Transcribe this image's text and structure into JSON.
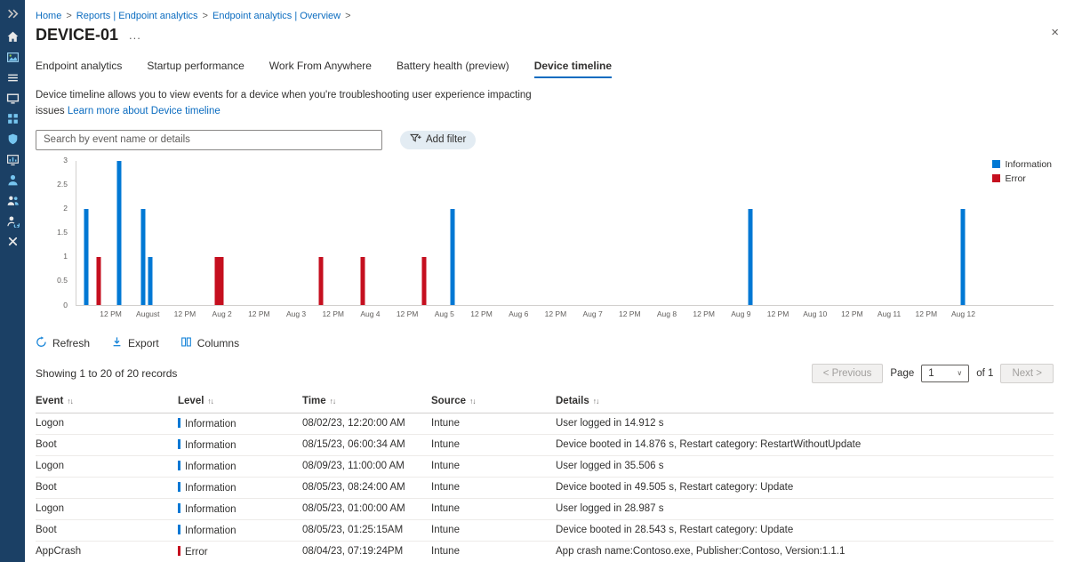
{
  "sidebar": {
    "items": [
      {
        "icon": "chevron-double-right-icon"
      },
      {
        "icon": "home-icon"
      },
      {
        "icon": "dashboard-icon"
      },
      {
        "icon": "all-services-icon"
      },
      {
        "icon": "devices-icon"
      },
      {
        "icon": "apps-icon"
      },
      {
        "icon": "endpoint-security-icon"
      },
      {
        "icon": "reports-icon"
      },
      {
        "icon": "users-icon"
      },
      {
        "icon": "groups-icon"
      },
      {
        "icon": "tenant-admin-icon"
      },
      {
        "icon": "troubleshooting-icon"
      }
    ]
  },
  "breadcrumb": {
    "separator": ">",
    "items": [
      "Home",
      "Reports | Endpoint analytics",
      "Endpoint analytics | Overview"
    ]
  },
  "header": {
    "title": "DEVICE-01",
    "more_label": "...",
    "close_label": "×"
  },
  "tabs": [
    {
      "label": "Endpoint analytics",
      "active": false
    },
    {
      "label": "Startup performance",
      "active": false
    },
    {
      "label": "Work From Anywhere",
      "active": false
    },
    {
      "label": "Battery health (preview)",
      "active": false
    },
    {
      "label": "Device timeline",
      "active": true
    }
  ],
  "description": {
    "text": "Device timeline allows you to view events for a device when you're troubleshooting user experience impacting issues",
    "link_text": "Learn more about Device timeline"
  },
  "filters": {
    "search_placeholder": "Search by event name or details",
    "add_filter_label": "Add filter"
  },
  "chart_data": {
    "type": "bar",
    "ylim": [
      0,
      3
    ],
    "yticks": [
      0,
      0.5,
      1,
      1.5,
      2,
      2.5,
      3
    ],
    "x_tick_labels": [
      "12 PM",
      "August",
      "12 PM",
      "Aug 2",
      "12 PM",
      "Aug 3",
      "12 PM",
      "Aug 4",
      "12 PM",
      "Aug 5",
      "12 PM",
      "Aug 6",
      "12 PM",
      "Aug 7",
      "12 PM",
      "Aug 8",
      "12 PM",
      "Aug 9",
      "12 PM",
      "Aug 10",
      "12 PM",
      "Aug 11",
      "12 PM",
      "Aug 12"
    ],
    "x_tick_start": 0.036,
    "x_tick_step": 0.0379,
    "grid": false,
    "legend_position": "top-right",
    "series": [
      {
        "name": "Information",
        "color": "#0078d4"
      },
      {
        "name": "Error",
        "color": "#c50f1f"
      }
    ],
    "bars": [
      {
        "pos": 0.01,
        "value": 2,
        "series": "Information"
      },
      {
        "pos": 0.023,
        "value": 1,
        "series": "Error"
      },
      {
        "pos": 0.044,
        "value": 3,
        "series": "Information"
      },
      {
        "pos": 0.068,
        "value": 2,
        "series": "Information"
      },
      {
        "pos": 0.0755,
        "value": 1,
        "series": "Information"
      },
      {
        "pos": 0.1435,
        "value": 1,
        "series": "Error"
      },
      {
        "pos": 0.148,
        "value": 1,
        "series": "Error"
      },
      {
        "pos": 0.25,
        "value": 1,
        "series": "Error"
      },
      {
        "pos": 0.293,
        "value": 1,
        "series": "Error"
      },
      {
        "pos": 0.356,
        "value": 1,
        "series": "Error"
      },
      {
        "pos": 0.385,
        "value": 2,
        "series": "Information"
      },
      {
        "pos": 0.69,
        "value": 2,
        "series": "Information"
      },
      {
        "pos": 0.907,
        "value": 2,
        "series": "Information"
      }
    ]
  },
  "toolbar": {
    "refresh_label": "Refresh",
    "export_label": "Export",
    "columns_label": "Columns"
  },
  "records": {
    "summary": "Showing 1 to 20 of 20 records",
    "pagination": {
      "previous_label": "< Previous",
      "page_label": "Page",
      "page_value": "1",
      "of_label": "of 1",
      "next_label": "Next >",
      "dropdown_icon": "∨"
    }
  },
  "table": {
    "columns": [
      "Event",
      "Level",
      "Time",
      "Source",
      "Details"
    ],
    "sort_icon": "↑↓",
    "rows": [
      {
        "event": "Logon",
        "level": "Information",
        "time": "08/02/23, 12:20:00 AM",
        "source": "Intune",
        "details": "User logged in 14.912 s"
      },
      {
        "event": "Boot",
        "level": "Information",
        "time": "08/15/23, 06:00:34 AM",
        "source": "Intune",
        "details": "Device booted in 14.876 s, Restart category: RestartWithoutUpdate"
      },
      {
        "event": "Logon",
        "level": "Information",
        "time": "08/09/23, 11:00:00 AM",
        "source": "Intune",
        "details": "User logged in 35.506 s"
      },
      {
        "event": "Boot",
        "level": "Information",
        "time": "08/05/23, 08:24:00 AM",
        "source": "Intune",
        "details": "Device booted in 49.505 s, Restart category: Update"
      },
      {
        "event": "Logon",
        "level": "Information",
        "time": "08/05/23, 01:00:00 AM",
        "source": "Intune",
        "details": "User logged in 28.987 s"
      },
      {
        "event": "Boot",
        "level": "Information",
        "time": "08/05/23, 01:25:15AM",
        "source": "Intune",
        "details": "Device booted in 28.543 s, Restart category: Update"
      },
      {
        "event": "AppCrash",
        "level": "Error",
        "time": "08/04/23, 07:19:24PM",
        "source": "Intune",
        "details": "App crash name:Contoso.exe, Publisher:Contoso, Version:1.1.1"
      }
    ]
  }
}
